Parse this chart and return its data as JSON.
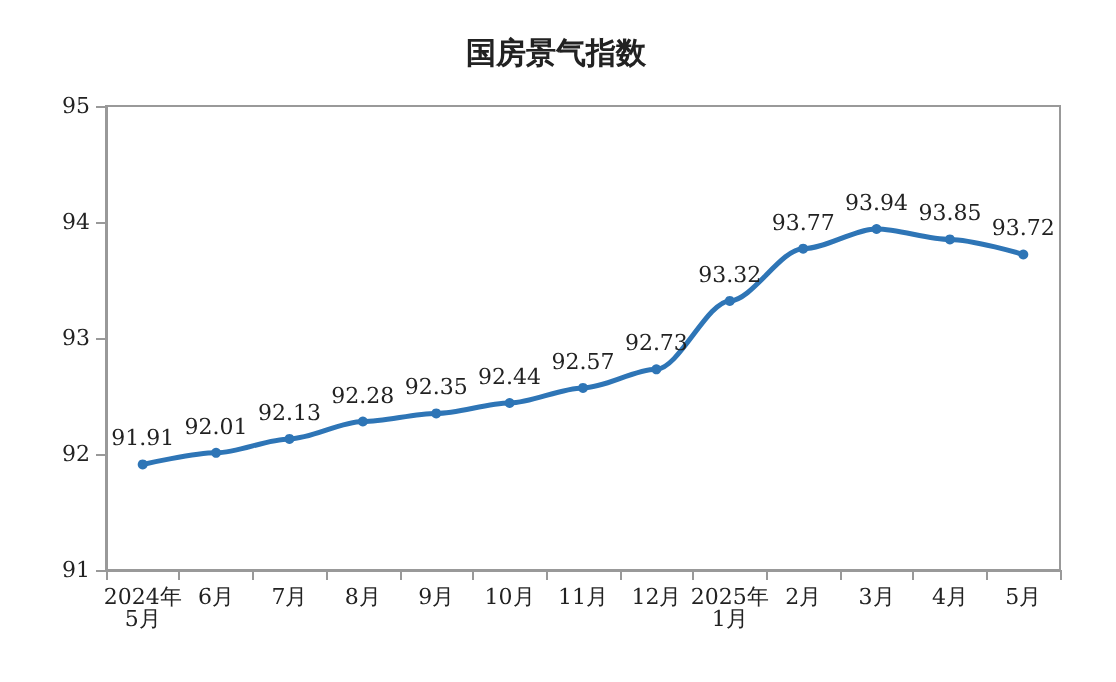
{
  "chart_data": {
    "type": "line",
    "title": "国房景气指数",
    "categories": [
      "2024年\n5月",
      "6月",
      "7月",
      "8月",
      "9月",
      "10月",
      "11月",
      "12月",
      "2025年\n1月",
      "2月",
      "3月",
      "4月",
      "5月"
    ],
    "series": [
      {
        "color": "#2e75b6",
        "values": [
          91.91,
          92.01,
          92.13,
          92.28,
          92.35,
          92.44,
          92.57,
          92.73,
          93.32,
          93.77,
          93.94,
          93.85,
          93.72
        ]
      }
    ],
    "ylim": [
      91,
      95
    ],
    "yticks": [
      91,
      92,
      93,
      94,
      95
    ],
    "data_labels": true,
    "marker": "circle",
    "grid": false
  }
}
